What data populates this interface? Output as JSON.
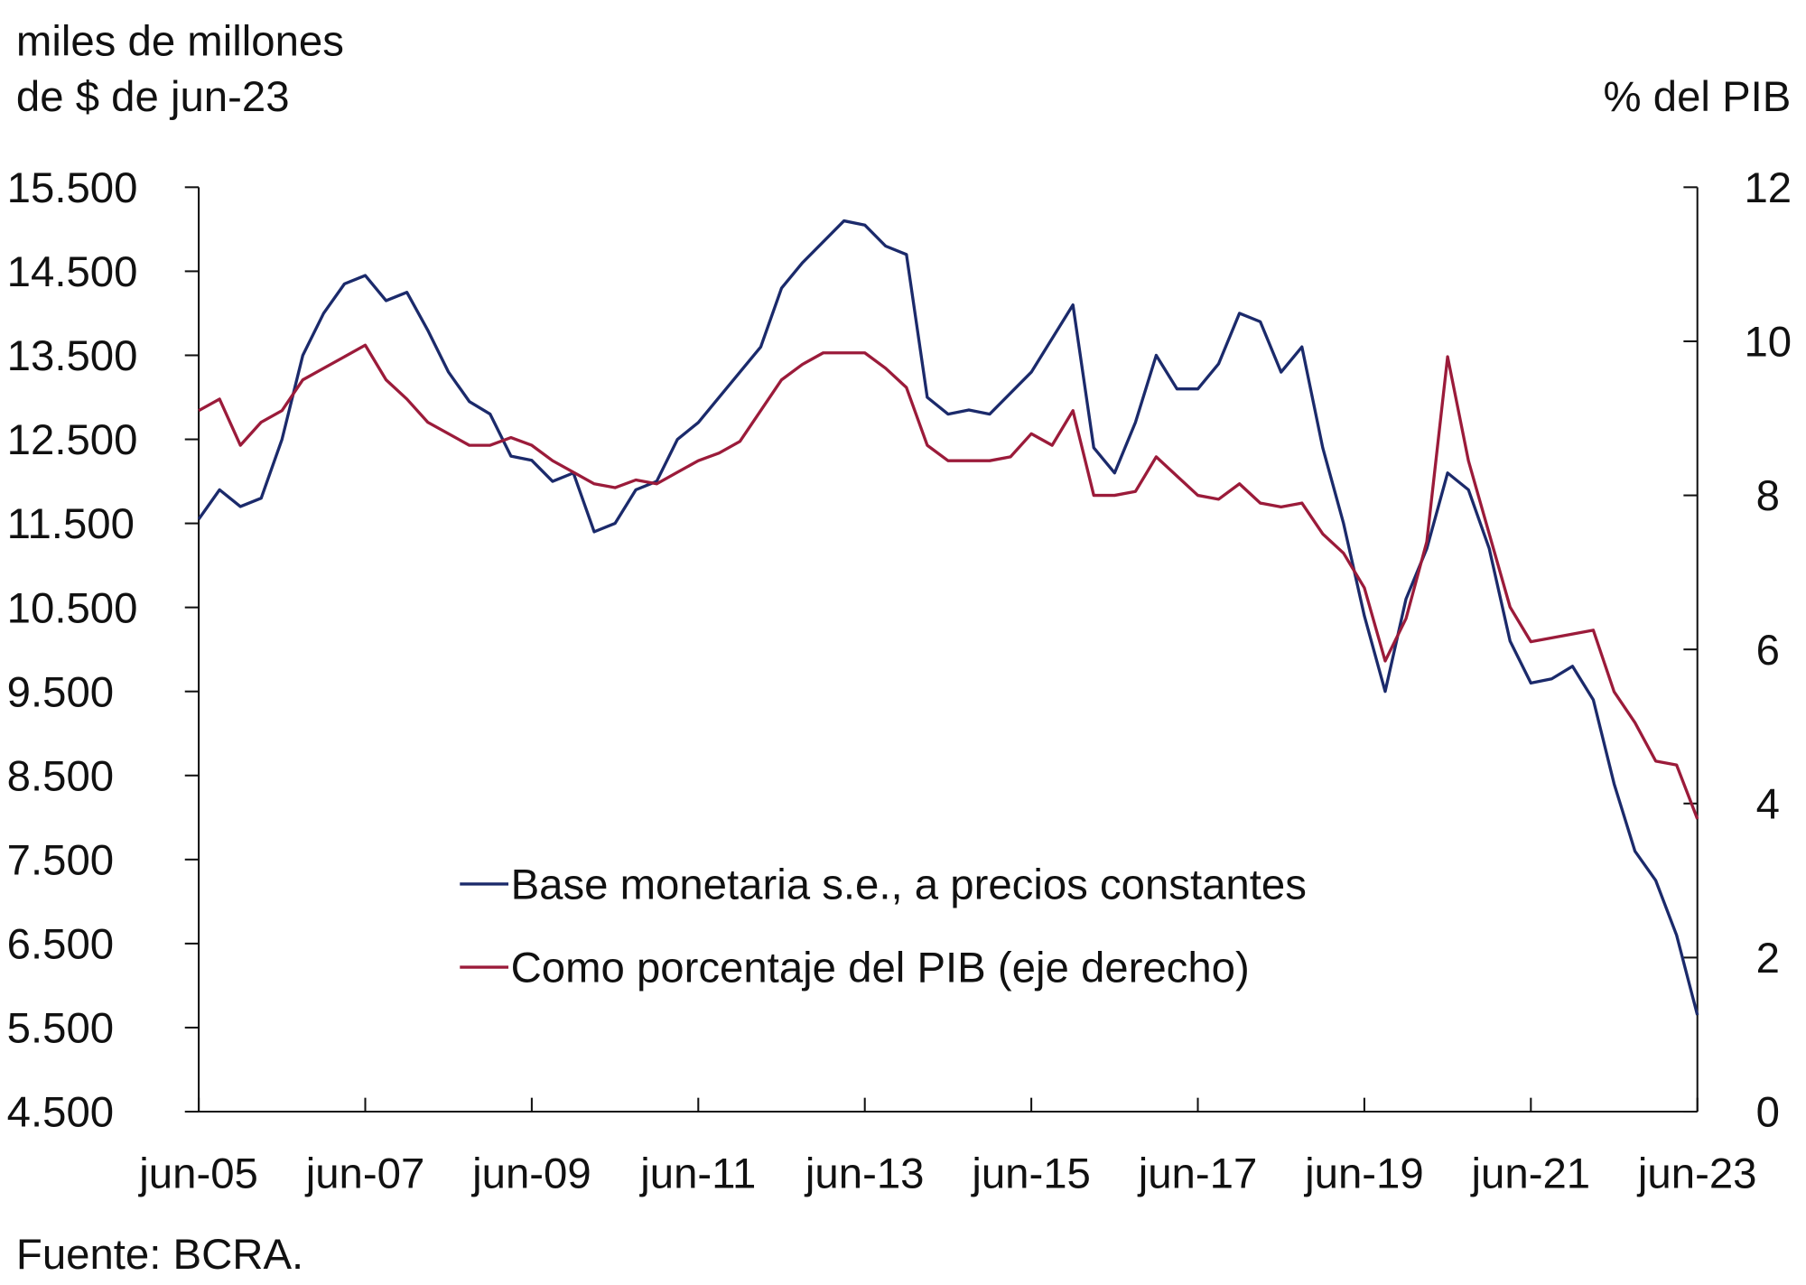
{
  "chart_data": {
    "type": "line",
    "ylabel": [
      "miles de millones",
      "de $ de jun-23"
    ],
    "y2label": "% del PIB",
    "source": "Fuente: BCRA.",
    "categories": [
      "jun-05",
      null,
      null,
      null,
      null,
      null,
      null,
      null,
      "jun-07",
      null,
      null,
      null,
      null,
      null,
      null,
      null,
      "jun-09",
      null,
      null,
      null,
      null,
      null,
      null,
      null,
      "jun-11",
      null,
      null,
      null,
      null,
      null,
      null,
      null,
      "jun-13",
      null,
      null,
      null,
      null,
      null,
      null,
      null,
      "jun-15",
      null,
      null,
      null,
      null,
      null,
      null,
      null,
      "jun-17",
      null,
      null,
      null,
      null,
      null,
      null,
      null,
      "jun-19",
      null,
      null,
      null,
      null,
      null,
      null,
      null,
      "jun-21",
      null,
      null,
      null,
      null,
      null,
      null,
      null,
      "jun-23"
    ],
    "series": [
      {
        "name": "Base monetaria s.e., a precios constantes",
        "color": "#1b2a6b",
        "axis": "y",
        "values": [
          11550,
          11900,
          11700,
          11800,
          12500,
          13500,
          14000,
          14350,
          14450,
          14150,
          14250,
          13800,
          13300,
          12950,
          12800,
          12300,
          12250,
          12000,
          12100,
          11400,
          11500,
          11900,
          12000,
          12500,
          12700,
          13000,
          13300,
          13600,
          14300,
          14600,
          14850,
          15100,
          15050,
          14800,
          14700,
          13000,
          12800,
          12850,
          12800,
          13050,
          13300,
          13700,
          14100,
          12400,
          12100,
          12700,
          13500,
          13100,
          13100,
          13400,
          14000,
          13900,
          13300,
          13600,
          12400,
          11500,
          10400,
          9500,
          10600,
          11200,
          12100,
          11900,
          11200,
          10100,
          9600,
          9650,
          9800,
          9400,
          8400,
          7600,
          7250,
          6600,
          5650
        ]
      },
      {
        "name": "Como porcentaje del PIB (eje derecho)",
        "color": "#9b1b3a",
        "axis": "y2",
        "values": [
          9.1,
          9.25,
          8.65,
          8.95,
          9.1,
          9.5,
          9.65,
          9.8,
          9.95,
          9.5,
          9.25,
          8.95,
          8.8,
          8.65,
          8.65,
          8.75,
          8.65,
          8.45,
          8.3,
          8.15,
          8.1,
          8.2,
          8.15,
          8.3,
          8.45,
          8.55,
          8.7,
          9.1,
          9.5,
          9.7,
          9.85,
          9.85,
          9.85,
          9.65,
          9.4,
          8.65,
          8.45,
          8.45,
          8.45,
          8.5,
          8.8,
          8.65,
          9.1,
          8.0,
          8.0,
          8.05,
          8.5,
          8.25,
          8.0,
          7.95,
          8.15,
          7.9,
          7.85,
          7.9,
          7.5,
          7.25,
          6.8,
          5.85,
          6.4,
          7.4,
          9.8,
          8.45,
          7.5,
          6.55,
          6.1,
          6.15,
          6.2,
          6.25,
          5.45,
          5.05,
          4.55,
          4.5,
          3.8
        ]
      }
    ],
    "ylim": [
      4500,
      15500
    ],
    "yticks": [
      {
        "value": 4500,
        "label": "4.500"
      },
      {
        "value": 5500,
        "label": "5.500"
      },
      {
        "value": 6500,
        "label": "6.500"
      },
      {
        "value": 7500,
        "label": "7.500"
      },
      {
        "value": 8500,
        "label": "8.500"
      },
      {
        "value": 9500,
        "label": "9.500"
      },
      {
        "value": 10500,
        "label": "10.500"
      },
      {
        "value": 11500,
        "label": "11.500"
      },
      {
        "value": 12500,
        "label": "12.500"
      },
      {
        "value": 13500,
        "label": "13.500"
      },
      {
        "value": 14500,
        "label": "14.500"
      },
      {
        "value": 15500,
        "label": "15.500"
      }
    ],
    "y2lim": [
      0,
      12
    ],
    "y2ticks": [
      0,
      2,
      4,
      6,
      8,
      10,
      12
    ],
    "grid": false,
    "legend": "center"
  }
}
